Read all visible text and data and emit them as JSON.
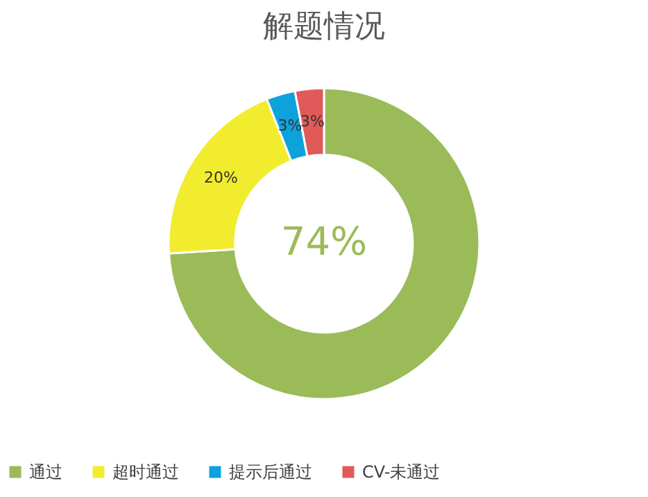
{
  "chart_data": {
    "type": "donut",
    "title": "解题情况",
    "categories": [
      "通过",
      "超时通过",
      "提示后通过",
      "CV-未通过"
    ],
    "values": [
      74,
      20,
      3,
      3
    ],
    "value_labels": [
      "74%",
      "20%",
      "3%",
      "3%"
    ],
    "colors": [
      "#9bbb59",
      "#f2ec2e",
      "#0ea2dd",
      "#e05a5a"
    ],
    "legend": "bottom"
  }
}
